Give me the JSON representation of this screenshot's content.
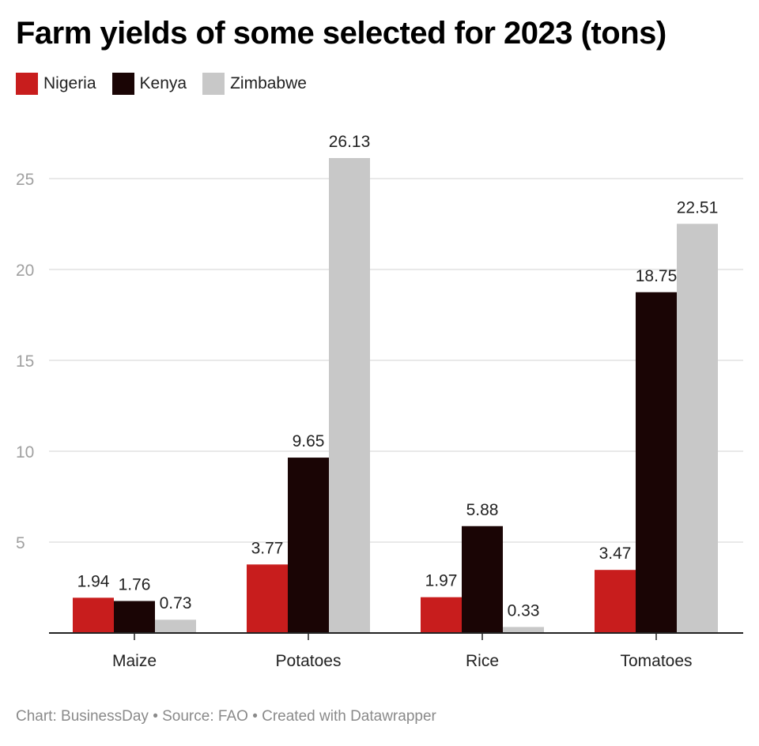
{
  "header": {
    "title": "Farm yields of some selected for 2023 (tons)"
  },
  "colors": {
    "nigeria": "#c81d1d",
    "kenya": "#1a0505",
    "zimbabwe": "#c8c8c8",
    "grid": "#e2e2e2",
    "axis": "#222222",
    "tick_label": "#a0a0a0"
  },
  "chart_data": {
    "type": "bar",
    "title": "Farm yields of some selected for 2023 (tons)",
    "xlabel": "",
    "ylabel": "",
    "ylim": [
      0,
      27
    ],
    "yticks": [
      5,
      10,
      15,
      20,
      25
    ],
    "categories": [
      "Maize",
      "Potatoes",
      "Rice",
      "Tomatoes"
    ],
    "series": [
      {
        "name": "Nigeria",
        "color": "#c81d1d",
        "values": [
          1.94,
          3.77,
          1.97,
          3.47
        ]
      },
      {
        "name": "Kenya",
        "color": "#1a0505",
        "values": [
          1.76,
          9.65,
          5.88,
          18.75
        ]
      },
      {
        "name": "Zimbabwe",
        "color": "#c8c8c8",
        "values": [
          0.73,
          26.13,
          0.33,
          22.51
        ]
      }
    ],
    "grid": true,
    "legend": "top-left"
  },
  "footer": {
    "chart_credit": "Chart: BusinessDay",
    "separator": "•",
    "source": "Source: FAO",
    "created_with": "Created with Datawrapper"
  }
}
